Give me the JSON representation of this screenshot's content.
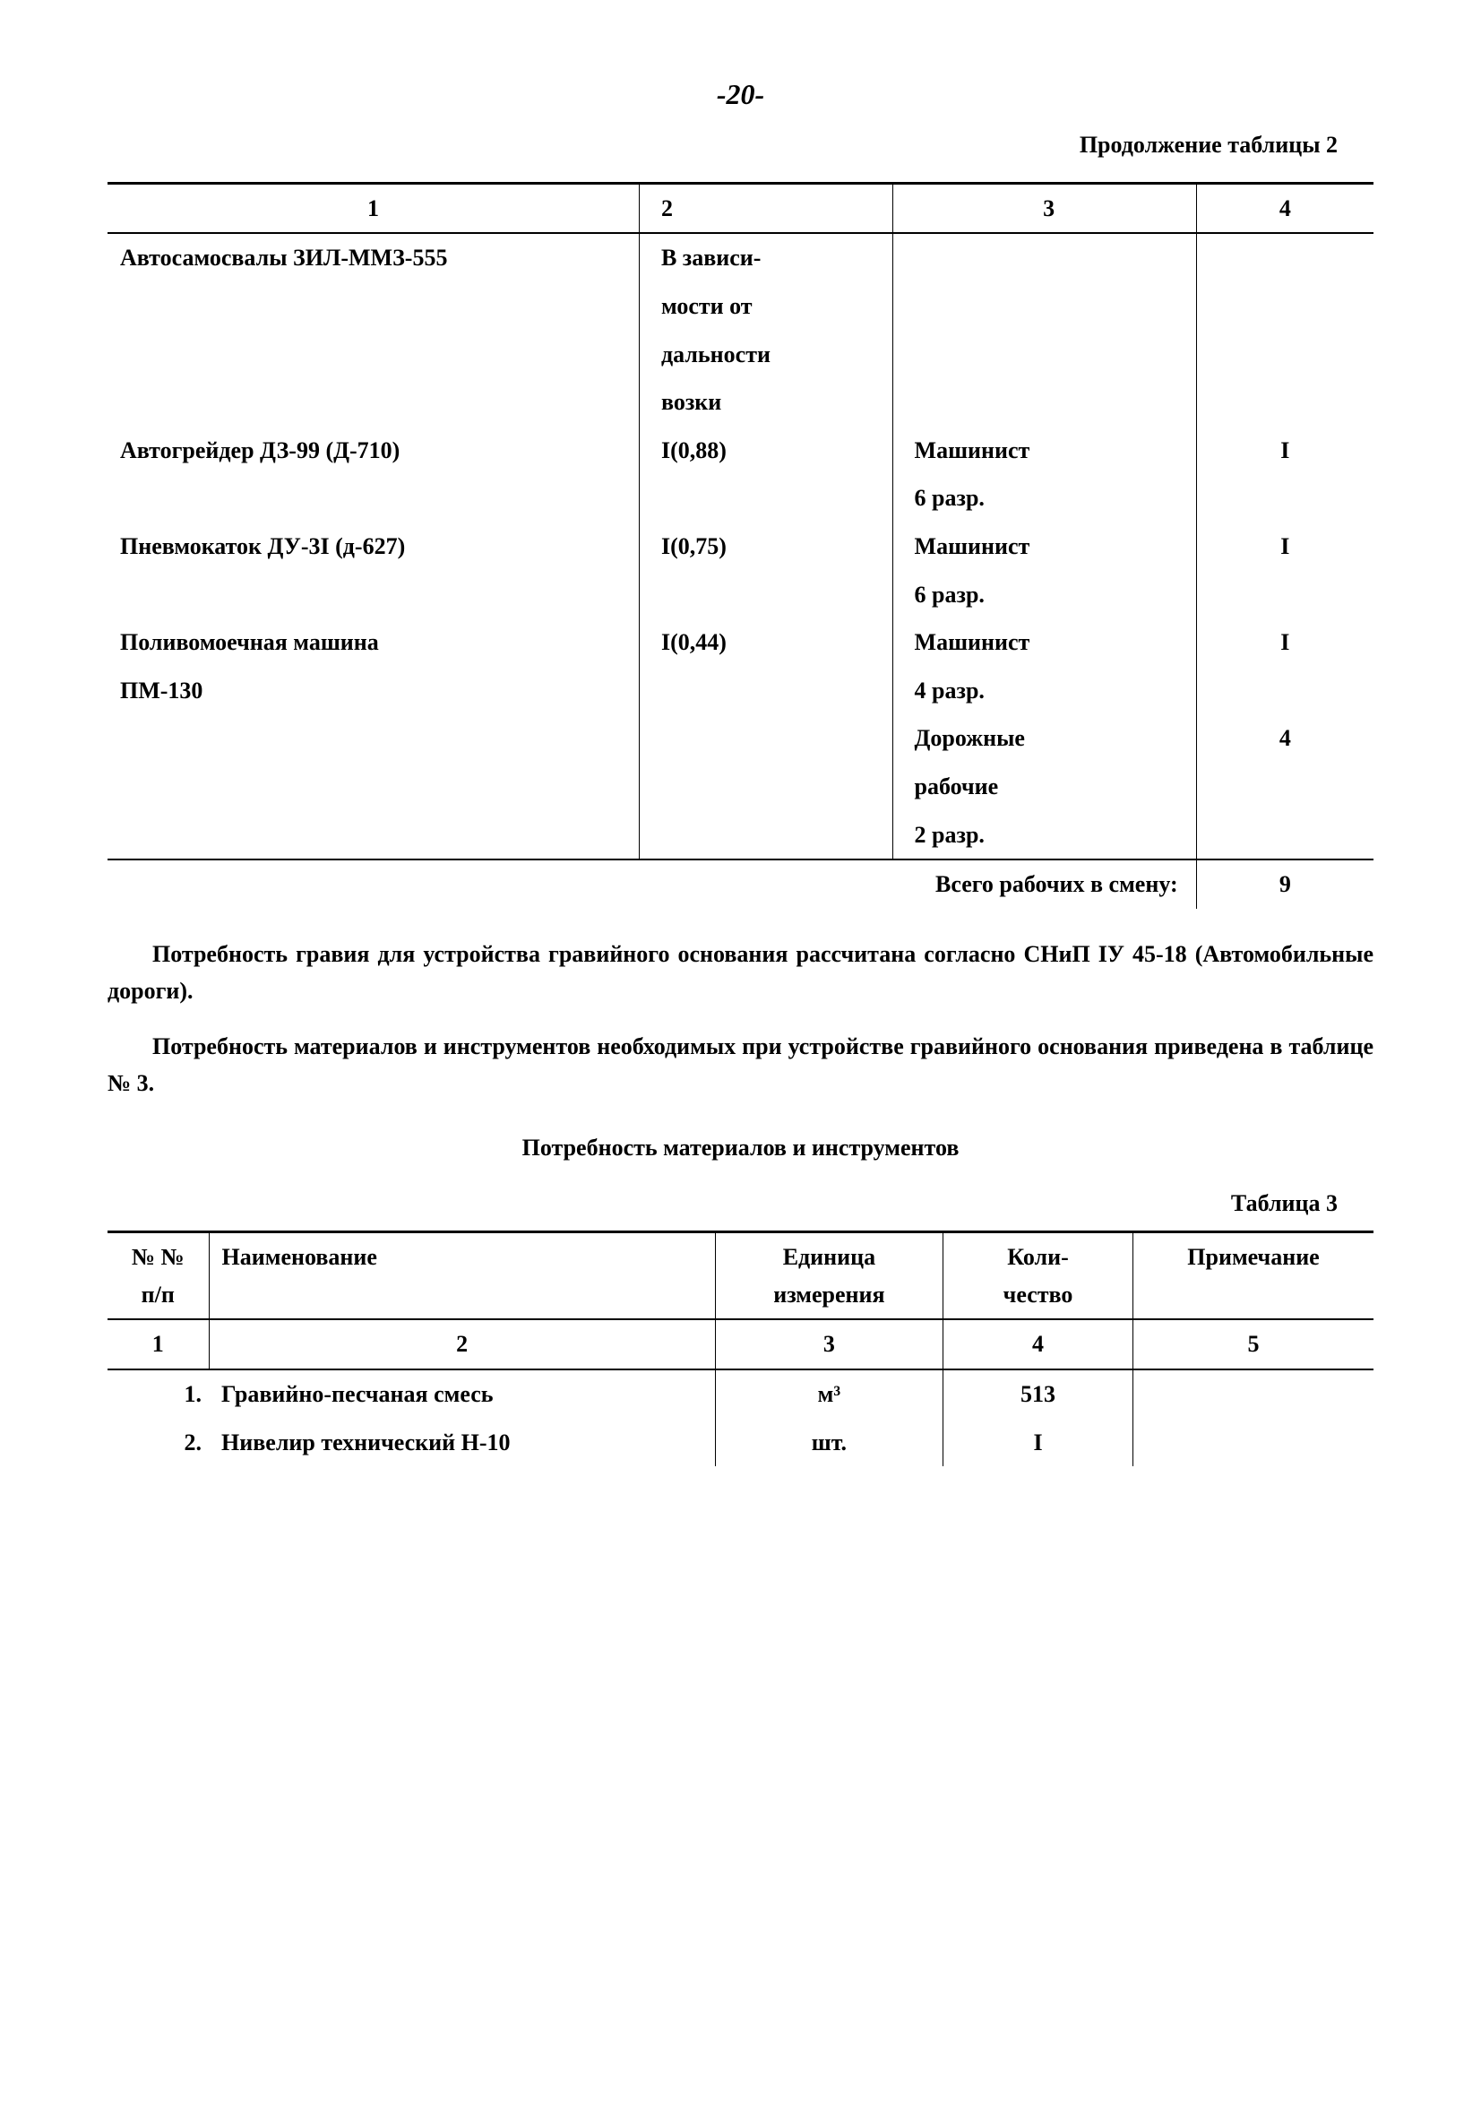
{
  "page_number": "-20-",
  "continuation_text": "Продолжение таблицы 2",
  "table2": {
    "type": "table",
    "headers": [
      "1",
      "2",
      "3",
      "4"
    ],
    "col_widths_pct": [
      42,
      20,
      24,
      14
    ],
    "rows": [
      {
        "c1": "Автосамосвалы ЗИЛ-ММЗ-555",
        "c2": "В зависи-",
        "c3": "",
        "c4": ""
      },
      {
        "c1": "",
        "c2": "мости от",
        "c3": "",
        "c4": ""
      },
      {
        "c1": "",
        "c2": "дальности",
        "c3": "",
        "c4": ""
      },
      {
        "c1": "",
        "c2": "возки",
        "c3": "",
        "c4": ""
      },
      {
        "c1": "Автогрейдер ДЗ-99 (Д-710)",
        "c2": "I(0,88)",
        "c3": "Машинист",
        "c4": "I"
      },
      {
        "c1": "",
        "c2": "",
        "c3": "6 разр.",
        "c4": ""
      },
      {
        "c1": "Пневмокаток ДУ-3I (д-627)",
        "c2": "I(0,75)",
        "c3": "Машинист",
        "c4": "I"
      },
      {
        "c1": "",
        "c2": "",
        "c3": "6 разр.",
        "c4": ""
      },
      {
        "c1": "Поливомоечная машина",
        "c2": "I(0,44)",
        "c3": "Машинист",
        "c4": "I"
      },
      {
        "c1": "ПМ-130",
        "c2": "",
        "c3": "4 разр.",
        "c4": ""
      },
      {
        "c1": "",
        "c2": "",
        "c3": "Дорожные",
        "c4": "4"
      },
      {
        "c1": "",
        "c2": "",
        "c3": "рабочие",
        "c4": ""
      },
      {
        "c1": "",
        "c2": "",
        "c3": "2 разр.",
        "c4": ""
      }
    ],
    "total_label": "Всего рабочих в смену:",
    "total_value": "9"
  },
  "paragraph1": "Потребность гравия для устройства гравийного основания рассчитана согласно СНиП IУ 45-18 (Автомобильные дороги).",
  "paragraph2": "Потребность материалов и инструментов необходимых при устройстве гравийного основания приведена в таблице № 3.",
  "section_title": "Потребность материалов и инструментов",
  "table3_label": "Таблица 3",
  "table3": {
    "type": "table",
    "headers": [
      "№ №\nп/п",
      "Наименование",
      "Единица\nизмерения",
      "Коли-\nчество",
      "Примечание"
    ],
    "subheaders": [
      "1",
      "2",
      "3",
      "4",
      "5"
    ],
    "col_widths_pct": [
      8,
      40,
      18,
      15,
      19
    ],
    "rows": [
      {
        "c1": "1.",
        "c2": "Гравийно-песчаная смесь",
        "c3": "м³",
        "c4": "513",
        "c5": ""
      },
      {
        "c1": "2.",
        "c2": "Нивелир технический Н-10",
        "c3": "шт.",
        "c4": "I",
        "c5": ""
      }
    ]
  },
  "colors": {
    "text": "#000000",
    "background": "#ffffff",
    "rule": "#000000"
  },
  "font": {
    "family": "Times New Roman",
    "size_pt": 14,
    "weight": "bold"
  }
}
